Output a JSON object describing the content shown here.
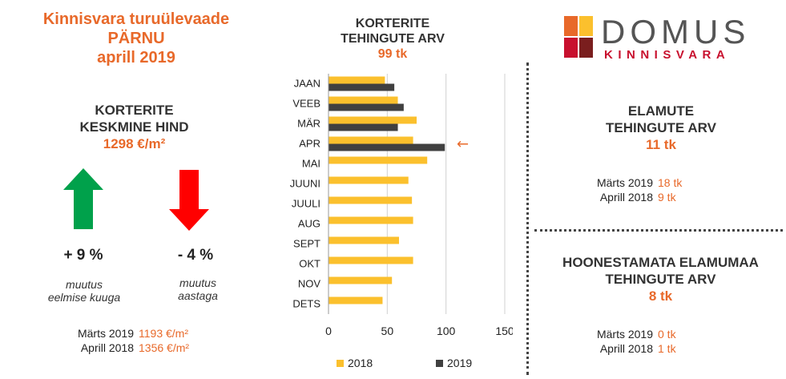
{
  "header": {
    "title_line1": "Kinnisvara turuülevaade",
    "title_line2": "PÄRNU",
    "title_line3": "aprill 2019"
  },
  "price": {
    "label_line1": "KORTERITE",
    "label_line2": "KESKMINE HIND",
    "value": "1298 €/m²",
    "up_change": "+ 9 %",
    "up_desc_line1": "muutus",
    "up_desc_line2": "eelmise kuuga",
    "down_change": "- 4 %",
    "down_desc_line1": "muutus",
    "down_desc_line2": "aastaga",
    "compare": [
      {
        "label": "Märts 2019",
        "value": "1193 €/m²"
      },
      {
        "label": "Aprill 2018",
        "value": "1356 €/m²"
      }
    ],
    "up_color": "#00a14b",
    "down_color": "#ff0000"
  },
  "chart_header": {
    "line1": "KORTERITE",
    "line2": "TEHINGUTE ARV",
    "count": "99 tk"
  },
  "chart_data": {
    "type": "bar",
    "orientation": "horizontal",
    "categories": [
      "JAAN",
      "VEEB",
      "MÄR",
      "APR",
      "MAI",
      "JUUNI",
      "JUULI",
      "AUG",
      "SEPT",
      "OKT",
      "NOV",
      "DETS"
    ],
    "series": [
      {
        "name": "2018",
        "color": "#fbc02d",
        "values": [
          48,
          59,
          75,
          72,
          84,
          68,
          71,
          72,
          60,
          72,
          54,
          46
        ]
      },
      {
        "name": "2019",
        "color": "#404040",
        "values": [
          56,
          64,
          59,
          99,
          null,
          null,
          null,
          null,
          null,
          null,
          null,
          null
        ]
      }
    ],
    "xlim": [
      0,
      150
    ],
    "xticks": [
      "0",
      "50",
      "100",
      "150"
    ],
    "grid": true,
    "legend": "bottom",
    "annotation": {
      "text": "←",
      "category": "APR"
    }
  },
  "logo": {
    "name": "DOMUS",
    "subtitle": "KINNISVARA"
  },
  "houses": {
    "line1": "ELAMUTE",
    "line2": "TEHINGUTE ARV",
    "count": "11 tk",
    "compare": [
      {
        "label": "Märts 2019",
        "value": "18 tk"
      },
      {
        "label": "Aprill 2018",
        "value": "9 tk"
      }
    ]
  },
  "land": {
    "line1": "HOONESTAMATA ELAMUMAA",
    "line2": "TEHINGUTE ARV",
    "count": "8 tk",
    "compare": [
      {
        "label": "Märts 2019",
        "value": "0 tk"
      },
      {
        "label": "Aprill 2018",
        "value": "1 tk"
      }
    ]
  }
}
